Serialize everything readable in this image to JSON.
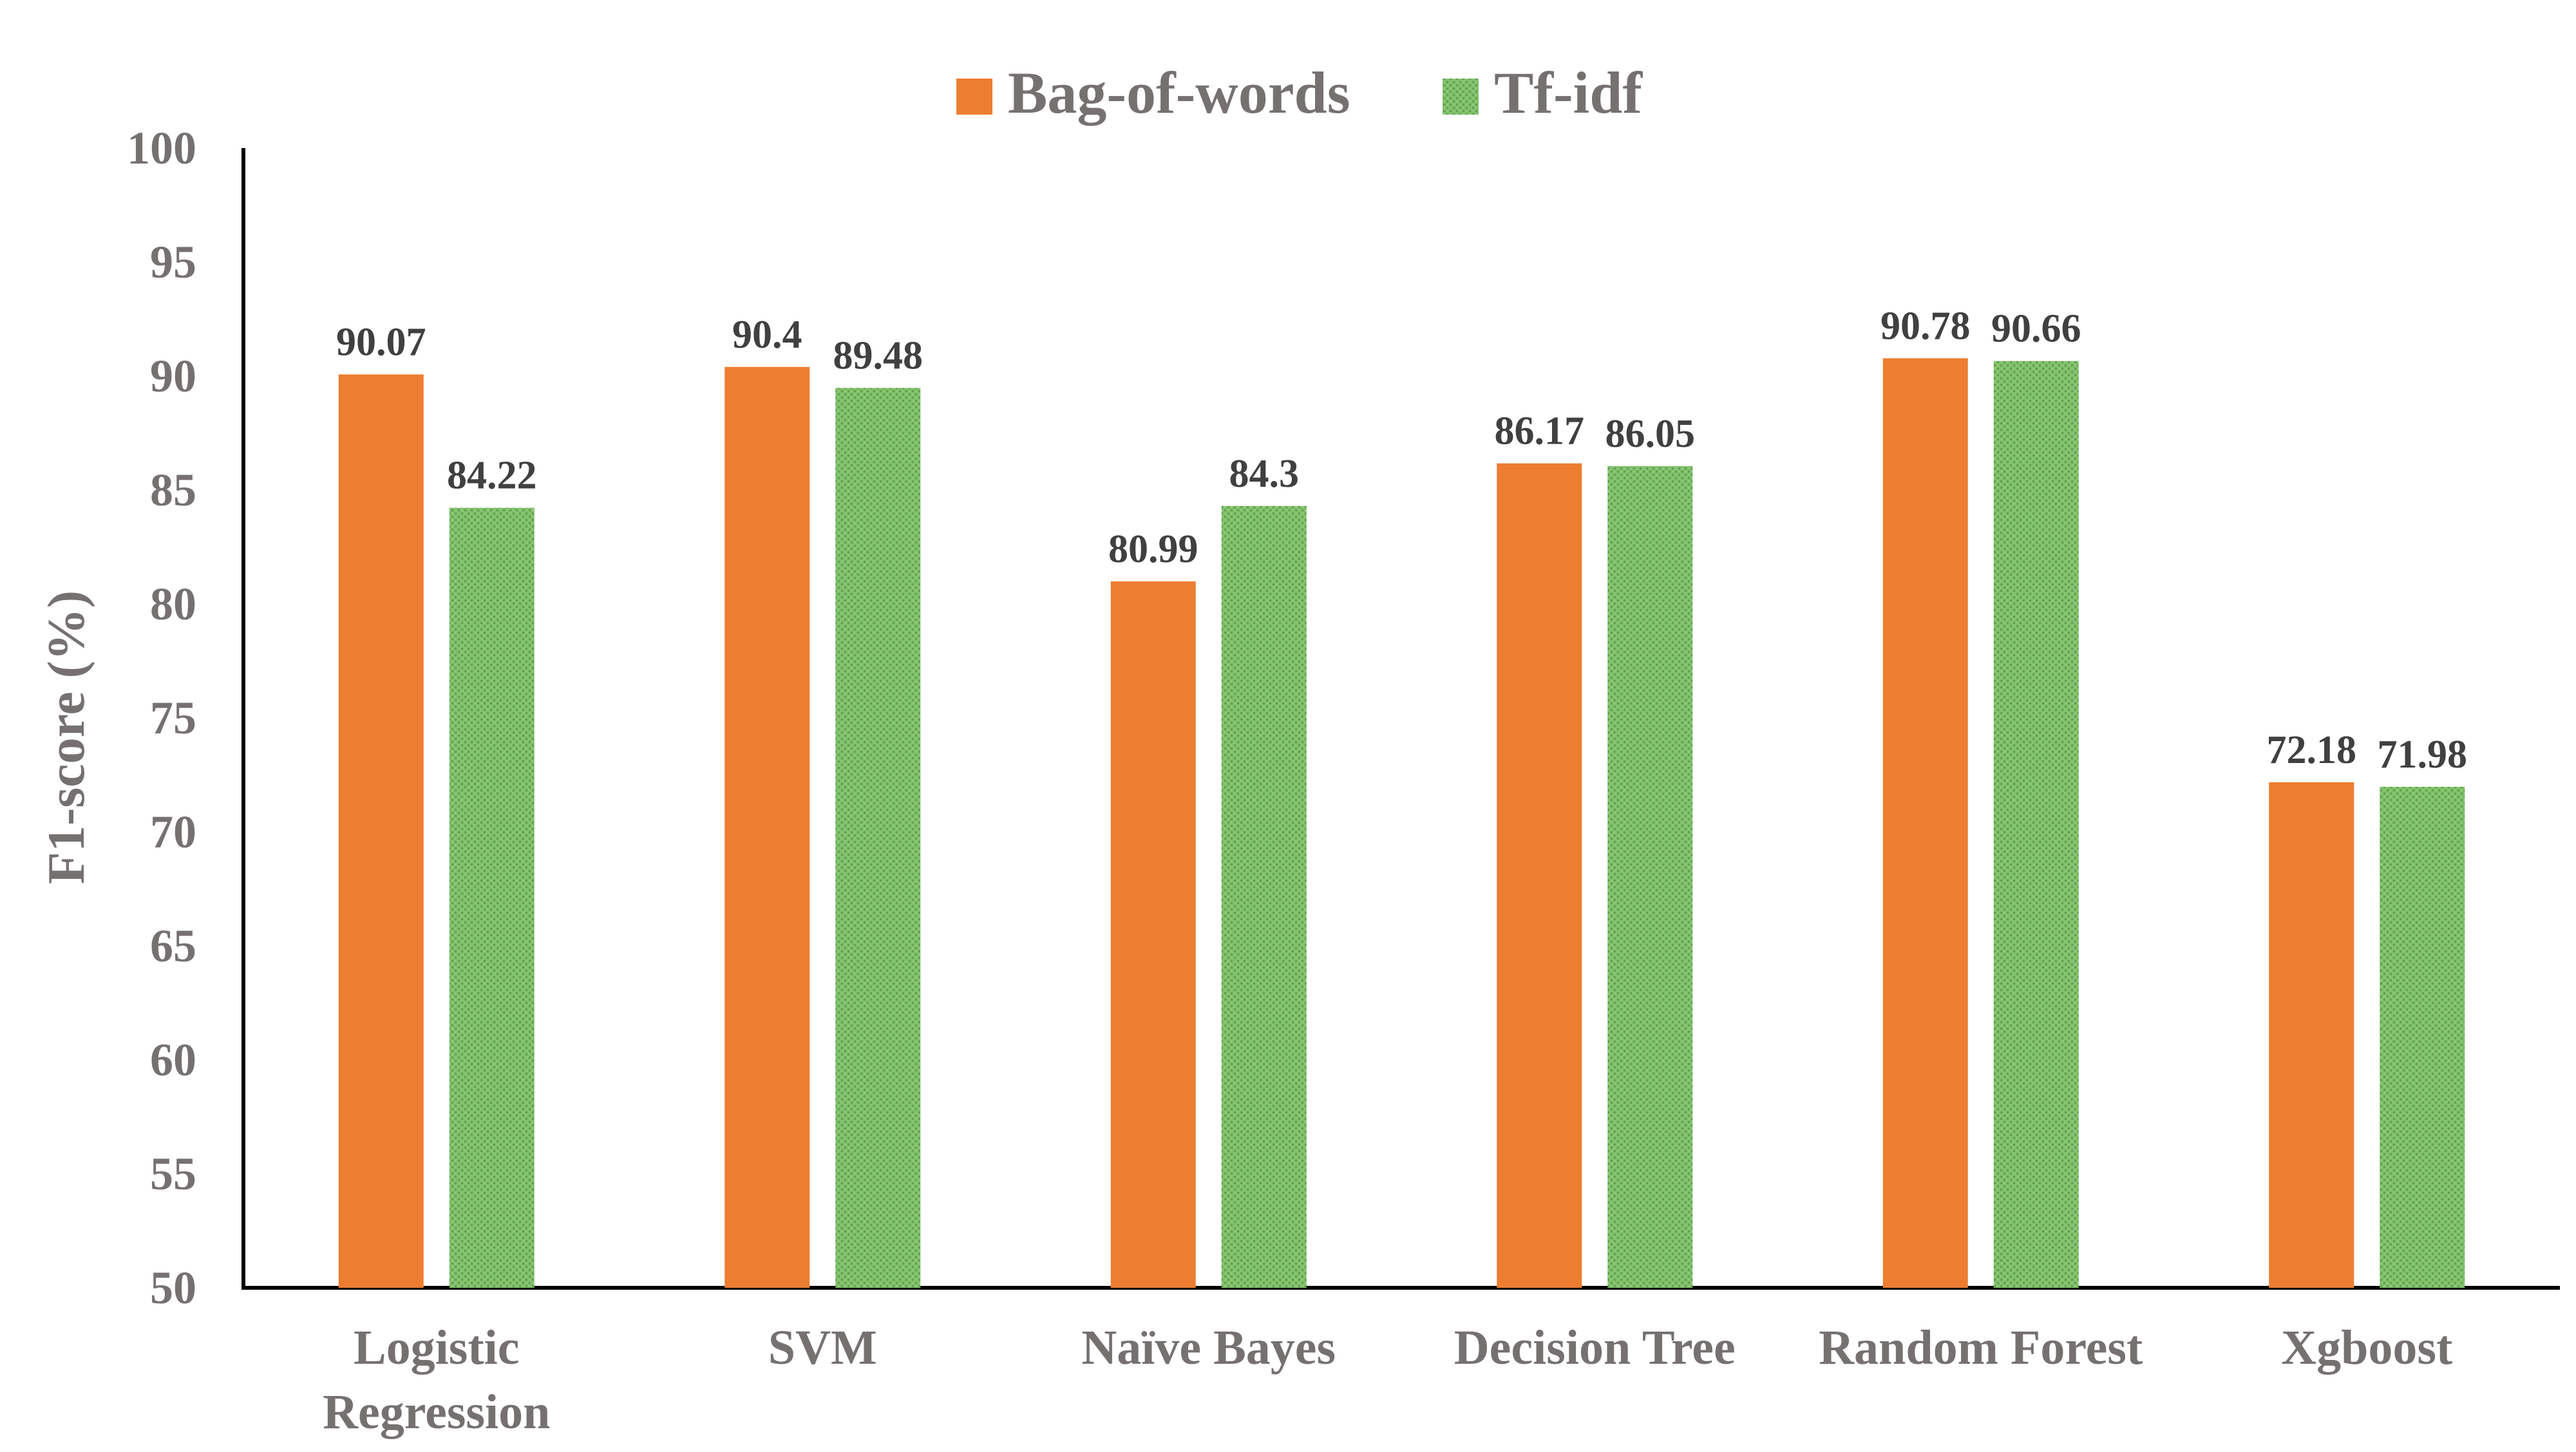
{
  "chart_data": {
    "type": "bar",
    "title": "",
    "xlabel": "",
    "ylabel": "F1-score (%)",
    "ylim": [
      50,
      100
    ],
    "yticks": [
      50,
      55,
      60,
      65,
      70,
      75,
      80,
      85,
      90,
      95,
      100
    ],
    "grid": false,
    "legend_position": "top-center",
    "categories": [
      [
        "Logistic",
        "Regression"
      ],
      [
        "SVM"
      ],
      [
        "Naïve Bayes"
      ],
      [
        "Decision Tree"
      ],
      [
        "Random Forest"
      ],
      [
        "Xgboost"
      ]
    ],
    "series": [
      {
        "name": "Bag-of-words",
        "color": "#ED7D31",
        "values": [
          90.07,
          90.4,
          80.99,
          86.17,
          90.78,
          72.18
        ],
        "labels": [
          "90.07",
          "90.4",
          "80.99",
          "86.17",
          "90.78",
          "72.18"
        ]
      },
      {
        "name": "Tf-idf",
        "color": "#70AD47",
        "pattern": "dotted",
        "values": [
          84.22,
          89.48,
          84.3,
          86.05,
          90.66,
          71.98
        ],
        "labels": [
          "84.22",
          "89.48",
          "84.3",
          "86.05",
          "90.66",
          "71.98"
        ]
      }
    ]
  },
  "colors": {
    "text": "#767171",
    "axis": "#000000",
    "label": "#404040"
  }
}
